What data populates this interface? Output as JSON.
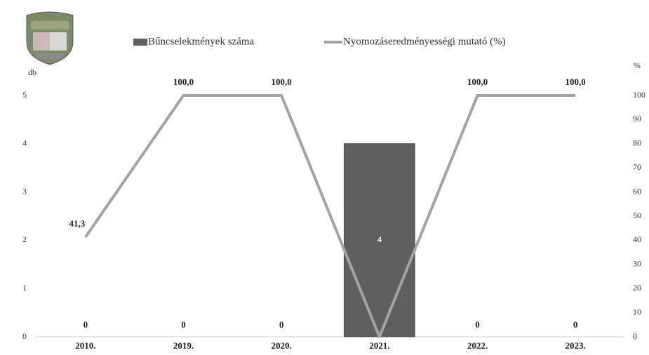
{
  "chart_data": {
    "type": "combo",
    "y_label": "db",
    "y2_label": "%",
    "categories": [
      "2010.",
      "2019.",
      "2020.",
      "2021.",
      "2022.",
      "2023."
    ],
    "series": [
      {
        "name": "Bűncselekmények száma",
        "type": "bar",
        "color": "#5f5f5f",
        "values": [
          0,
          0,
          0,
          4,
          0,
          0
        ]
      },
      {
        "name": "Nyomozáseredményességi mutató (%)",
        "type": "line",
        "axis": "y2",
        "color": "#a3a3a3",
        "values": [
          41.3,
          100,
          100,
          0,
          100,
          100
        ],
        "value_labels": [
          "41,3",
          "100,0",
          "100,0",
          null,
          "100,0",
          "100,0"
        ]
      }
    ],
    "ylim": [
      0,
      5
    ],
    "yticks": [
      0,
      1,
      2,
      3,
      4,
      5
    ],
    "y2lim": [
      0,
      100
    ],
    "y2ticks": [
      0,
      10,
      20,
      30,
      40,
      50,
      60,
      70,
      80,
      90,
      100
    ],
    "legend": "top",
    "grid": false
  }
}
